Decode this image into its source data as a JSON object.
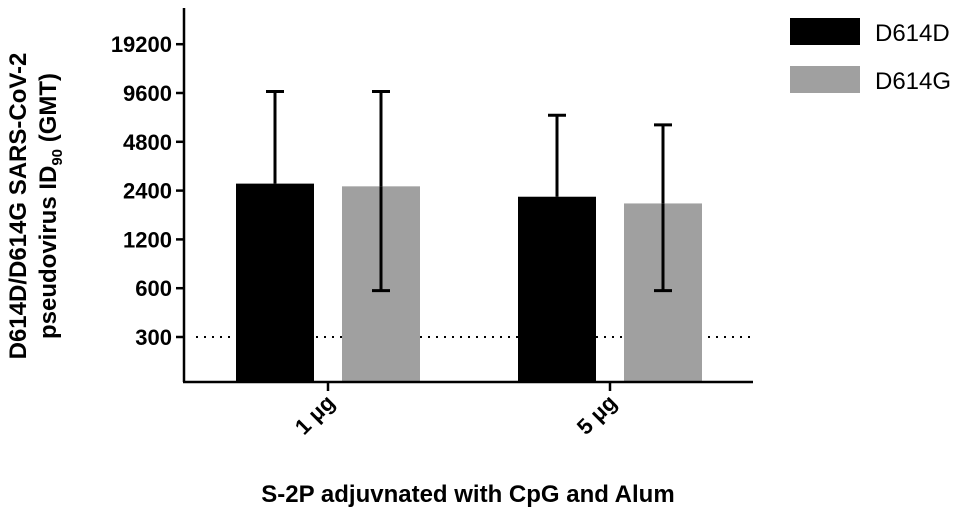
{
  "chart_data": {
    "type": "bar",
    "categories": [
      "1 μg",
      "5 μg"
    ],
    "series": [
      {
        "name": "D614D",
        "color": "#000000",
        "values": [
          2650,
          2200
        ],
        "error_upper": [
          9800,
          7000
        ],
        "error_lower": [
          null,
          null
        ]
      },
      {
        "name": "D614G",
        "color": "#a0a0a0",
        "values": [
          2550,
          2000
        ],
        "error_upper": [
          9800,
          6100
        ],
        "error_lower": [
          580,
          580
        ]
      }
    ],
    "yscale": "log2",
    "ylim": [
      150,
      30000
    ],
    "yticks": [
      300,
      600,
      1200,
      2400,
      4800,
      9600,
      19200
    ],
    "ytick_labels": [
      "300",
      "600",
      "1200",
      "2400",
      "4800",
      "9600",
      "19200"
    ],
    "reference_line": {
      "value": 300,
      "style": "dotted"
    },
    "xlabel": "S-2P adjuvnated with CpG and Alum",
    "ylabel_line1": "D614D/D614G SARS-CoV-2",
    "ylabel_line2": "pseudovirus ID",
    "ylabel_line2_sub": "90",
    "ylabel_line2_end": " (GMT)",
    "legend_position": "top-right",
    "grid": false
  }
}
